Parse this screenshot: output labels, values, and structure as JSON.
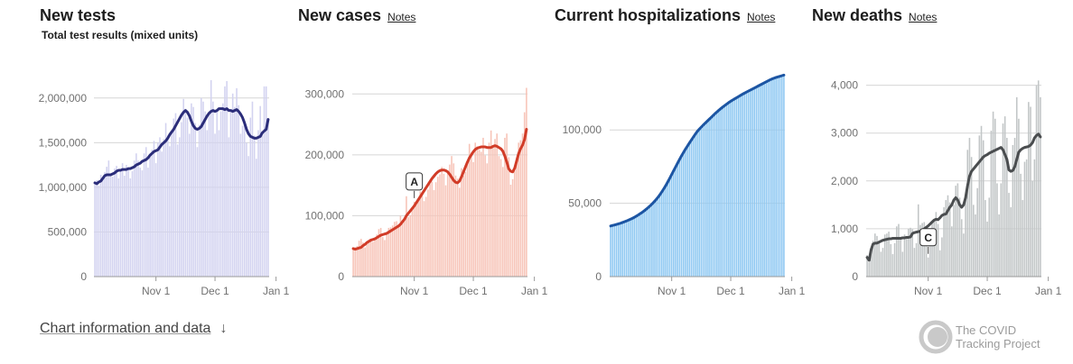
{
  "chart_data": [
    {
      "id": "tests",
      "type": "bar",
      "title": "New tests",
      "subtitle": "Total test results (mixed units)",
      "notes_link": "",
      "ylim": [
        0,
        2250000
      ],
      "yticks": [
        0,
        500000,
        1000000,
        1500000,
        2000000
      ],
      "ytick_labels": [
        "0",
        "500,000",
        "1,000,000",
        "1,500,000",
        "2,000,000"
      ],
      "xlabels": [
        "Nov 1",
        "Dec 1",
        "Jan 1"
      ],
      "bar_color": "#d3d3f0",
      "line_color": "#2b2d7a",
      "series": [
        {
          "name": "",
          "kind": "daily",
          "values": [
            1060000,
            1080000,
            1020000,
            1140000,
            1090000,
            1170000,
            1230000,
            1300000,
            1130000,
            1120000,
            1210000,
            1240000,
            1100000,
            1200000,
            1270000,
            1130000,
            1250000,
            1220000,
            1100000,
            1180000,
            1300000,
            1380000,
            1300000,
            1220000,
            1190000,
            1380000,
            1450000,
            1220000,
            1340000,
            1420000,
            1520000,
            1270000,
            1500000,
            1560000,
            1400000,
            1540000,
            1720000,
            1580000,
            1460000,
            1630000,
            1770000,
            1830000,
            1480000,
            1560000,
            1730000,
            1990000,
            1880000,
            1780000,
            1600000,
            1940000,
            1900000,
            1720000,
            1450000,
            1700000,
            2000000,
            1960000,
            1850000,
            1640000,
            1830000,
            2200000,
            1960000,
            1600000,
            1870000,
            1640000,
            1850000,
            1940000,
            2130000,
            2190000,
            1560000,
            1850000,
            2050000,
            1900000,
            2110000,
            1920000,
            1600000,
            1690000,
            1710000,
            1500000,
            1350000,
            1780000,
            1960000,
            1580000,
            1320000,
            1640000,
            1910000,
            1580000,
            2130000,
            2130000,
            1770000
          ]
        },
        {
          "name": "",
          "kind": "7-day average",
          "values": [
            1050000,
            1040000,
            1060000,
            1070000,
            1100000,
            1130000,
            1140000,
            1140000,
            1140000,
            1150000,
            1160000,
            1180000,
            1190000,
            1190000,
            1200000,
            1200000,
            1200000,
            1210000,
            1210000,
            1220000,
            1230000,
            1250000,
            1260000,
            1270000,
            1290000,
            1300000,
            1310000,
            1330000,
            1360000,
            1380000,
            1400000,
            1410000,
            1420000,
            1450000,
            1480000,
            1500000,
            1520000,
            1550000,
            1590000,
            1620000,
            1650000,
            1690000,
            1730000,
            1770000,
            1810000,
            1840000,
            1860000,
            1840000,
            1800000,
            1740000,
            1690000,
            1660000,
            1650000,
            1660000,
            1680000,
            1720000,
            1760000,
            1800000,
            1830000,
            1850000,
            1860000,
            1850000,
            1860000,
            1880000,
            1880000,
            1880000,
            1870000,
            1880000,
            1860000,
            1860000,
            1850000,
            1860000,
            1870000,
            1850000,
            1820000,
            1780000,
            1720000,
            1650000,
            1600000,
            1570000,
            1560000,
            1550000,
            1550000,
            1560000,
            1570000,
            1610000,
            1630000,
            1650000,
            1760000
          ]
        }
      ]
    },
    {
      "id": "cases",
      "type": "bar",
      "title": "New cases",
      "subtitle": "",
      "notes_link": "Notes",
      "ylim": [
        0,
        330000
      ],
      "yticks": [
        0,
        100000,
        200000,
        300000
      ],
      "ytick_labels": [
        "0",
        "100,000",
        "200,000",
        "300,000"
      ],
      "xlabels": [
        "Nov 1",
        "Dec 1",
        "Jan 1"
      ],
      "bar_color": "#f7c4b8",
      "line_color": "#d13c28",
      "annotation": "A",
      "series": [
        {
          "name": "",
          "kind": "daily",
          "values": [
            47000,
            48000,
            50000,
            59000,
            62000,
            56000,
            48000,
            54000,
            58000,
            62000,
            57000,
            64000,
            69000,
            78000,
            80000,
            65000,
            60000,
            71000,
            80000,
            81000,
            84000,
            90000,
            91000,
            83000,
            100000,
            93000,
            94000,
            132000,
            98000,
            101000,
            110000,
            123000,
            118000,
            126000,
            140000,
            137000,
            124000,
            131000,
            143000,
            152000,
            156000,
            142000,
            155000,
            164000,
            168000,
            180000,
            169000,
            150000,
            174000,
            184000,
            198000,
            186000,
            166000,
            161000,
            146000,
            178000,
            166000,
            172000,
            190000,
            218000,
            204000,
            188000,
            220000,
            214000,
            208000,
            205000,
            228000,
            199000,
            186000,
            220000,
            240000,
            212000,
            226000,
            235000,
            198000,
            193000,
            180000,
            228000,
            235000,
            196000,
            151000,
            160000,
            174000,
            195000,
            220000,
            224000,
            235000,
            270000,
            310000
          ]
        },
        {
          "name": "",
          "kind": "7-day average",
          "values": [
            46000,
            45000,
            46000,
            47000,
            48000,
            51000,
            53000,
            56000,
            58000,
            60000,
            61000,
            62000,
            64000,
            66000,
            68000,
            69000,
            70000,
            71000,
            73000,
            75000,
            77000,
            79000,
            81000,
            83000,
            86000,
            90000,
            94000,
            100000,
            104000,
            108000,
            112000,
            116000,
            121000,
            126000,
            131000,
            136000,
            141000,
            146000,
            151000,
            156000,
            161000,
            165000,
            169000,
            172000,
            174000,
            175000,
            175000,
            174000,
            172000,
            168000,
            163000,
            158000,
            155000,
            154000,
            157000,
            164000,
            172000,
            180000,
            188000,
            195000,
            200000,
            205000,
            209000,
            211000,
            212000,
            213000,
            213000,
            213000,
            212000,
            212000,
            212000,
            214000,
            215000,
            214000,
            212000,
            210000,
            206000,
            198000,
            188000,
            177000,
            173000,
            172000,
            178000,
            190000,
            202000,
            210000,
            216000,
            225000,
            242000
          ]
        }
      ]
    },
    {
      "id": "hospitalizations",
      "type": "bar",
      "title": "Current hospitalizations",
      "subtitle": "",
      "notes_link": "Notes",
      "ylim": [
        0,
        137000
      ],
      "yticks": [
        0,
        50000,
        100000
      ],
      "ytick_labels": [
        "0",
        "50,000",
        "100,000"
      ],
      "xlabels": [
        "Nov 1",
        "Dec 1",
        "Jan 1"
      ],
      "bar_color": "#8ec8f2",
      "line_color": "#1c55a3",
      "series": [
        {
          "name": "",
          "kind": "daily",
          "values": [
            34800,
            35200,
            35500,
            35900,
            36300,
            36700,
            37200,
            37700,
            38200,
            38800,
            39400,
            40000,
            40700,
            41500,
            42300,
            43200,
            44100,
            45100,
            46200,
            47300,
            48500,
            49800,
            51200,
            52700,
            54300,
            56000,
            58000,
            60100,
            62400,
            64800,
            67300,
            69900,
            72500,
            75100,
            77700,
            80200,
            82600,
            84900,
            87200,
            89300,
            91400,
            93400,
            95400,
            97400,
            99300,
            100800,
            102200,
            103600,
            104900,
            106200,
            107500,
            108800,
            110100,
            111400,
            112600,
            113800,
            114900,
            116000,
            117000,
            118000,
            119000,
            120000,
            120800,
            121600,
            122400,
            123200,
            124000,
            124800,
            125500,
            126200,
            126900,
            127600,
            128300,
            129000,
            129700,
            130400,
            131100,
            131800,
            132600,
            133400,
            134200,
            135000,
            135500,
            136000,
            136400,
            136700,
            137000,
            137200,
            137300
          ]
        },
        {
          "name": "",
          "kind": "7-day average",
          "values": [
            34500,
            34900,
            35200,
            35600,
            36000,
            36400,
            36900,
            37400,
            37900,
            38500,
            39100,
            39700,
            40400,
            41200,
            42000,
            42900,
            43800,
            44800,
            45900,
            47000,
            48200,
            49500,
            50900,
            52400,
            54000,
            55800,
            57800,
            59900,
            62100,
            64500,
            67000,
            69600,
            72200,
            74800,
            77400,
            79900,
            82300,
            84600,
            86900,
            89000,
            91100,
            93100,
            95100,
            97100,
            99000,
            100500,
            101900,
            103300,
            104600,
            105900,
            107200,
            108500,
            109800,
            111100,
            112300,
            113500,
            114600,
            115700,
            116700,
            117700,
            118700,
            119600,
            120400,
            121200,
            122000,
            122800,
            123600,
            124400,
            125100,
            125800,
            126500,
            127200,
            127900,
            128600,
            129300,
            130000,
            130700,
            131400,
            132100,
            132800,
            133500,
            134200,
            134800,
            135300,
            135800,
            136200,
            136600,
            137000,
            137400
          ]
        }
      ]
    },
    {
      "id": "deaths",
      "type": "bar",
      "title": "New deaths",
      "subtitle": "",
      "notes_link": "Notes",
      "ylim": [
        0,
        4200
      ],
      "yticks": [
        0,
        1000,
        2000,
        3000,
        4000
      ],
      "ytick_labels": [
        "0",
        "1,000",
        "2,000",
        "3,000",
        "4,000"
      ],
      "xlabels": [
        "Nov 1",
        "Dec 1",
        "Jan 1"
      ],
      "bar_color": "#c2c6c7",
      "line_color": "#4a4d4f",
      "annotation": "C",
      "series": [
        {
          "name": "",
          "kind": "daily",
          "values": [
            450,
            300,
            580,
            750,
            900,
            850,
            700,
            520,
            600,
            880,
            900,
            940,
            680,
            470,
            700,
            1050,
            1100,
            820,
            520,
            880,
            850,
            1000,
            1020,
            990,
            600,
            700,
            1510,
            1080,
            1120,
            1140,
            920,
            400,
            700,
            1150,
            1200,
            1350,
            1100,
            550,
            820,
            1450,
            1600,
            1700,
            1550,
            1050,
            1500,
            1900,
            1950,
            1650,
            1200,
            900,
            1700,
            2650,
            2900,
            2500,
            1500,
            1300,
            1850,
            2950,
            3150,
            2850,
            1600,
            1150,
            1650,
            3050,
            3450,
            3300,
            1950,
            1300,
            1950,
            3200,
            3350,
            2900,
            1750,
            1450,
            2750,
            2900,
            3750,
            3300,
            2150,
            1600,
            2400,
            2450,
            3650,
            3550,
            2000,
            2450,
            4000,
            4100,
            3750
          ]
        },
        {
          "name": "",
          "kind": "7-day average",
          "values": [
            400,
            340,
            560,
            680,
            700,
            700,
            720,
            740,
            760,
            770,
            780,
            790,
            790,
            800,
            800,
            800,
            800,
            800,
            810,
            810,
            820,
            820,
            830,
            900,
            920,
            930,
            940,
            950,
            970,
            1000,
            1030,
            1060,
            1100,
            1140,
            1180,
            1200,
            1190,
            1230,
            1280,
            1300,
            1310,
            1380,
            1450,
            1500,
            1600,
            1650,
            1600,
            1500,
            1450,
            1500,
            1650,
            1900,
            2100,
            2200,
            2250,
            2300,
            2350,
            2400,
            2450,
            2500,
            2530,
            2550,
            2580,
            2600,
            2620,
            2640,
            2660,
            2680,
            2700,
            2650,
            2550,
            2450,
            2230,
            2200,
            2220,
            2300,
            2450,
            2600,
            2650,
            2680,
            2700,
            2710,
            2720,
            2750,
            2800,
            2900,
            2950,
            2980,
            2920
          ]
        }
      ]
    }
  ],
  "footer": {
    "chart_info_label": "Chart information and data",
    "chart_info_icon": "down-arrow-icon",
    "logo_line1": "The COVID",
    "logo_line2": "Tracking Project"
  }
}
